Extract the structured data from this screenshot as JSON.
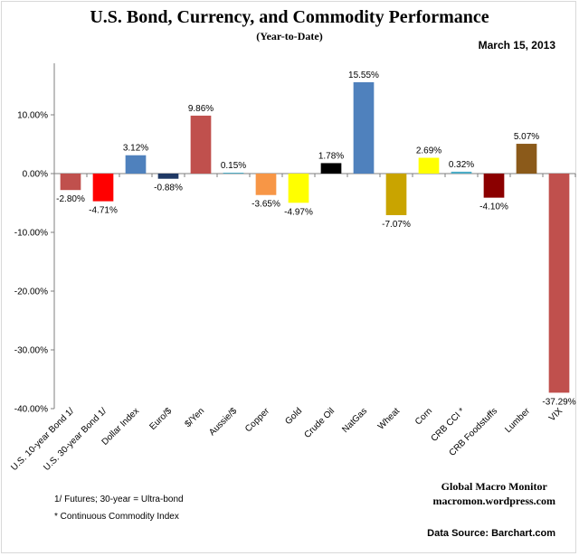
{
  "header": {
    "title": "U.S. Bond, Currency, and Commodity Performance",
    "subtitle": "(Year-to-Date)",
    "date": "March 15, 2013"
  },
  "footer": {
    "monitor_line1": "Global Macro Monitor",
    "monitor_line2": "macromon.wordpress.com",
    "source": "Data Source:  Barchart.com",
    "note1": "1/   Futures; 30-year = Ultra-bond",
    "note2": "* Continuous Commodity Index"
  },
  "chart_data": {
    "type": "bar",
    "title": "U.S. Bond, Currency, and Commodity Performance",
    "subtitle": "(Year-to-Date)",
    "xlabel": "",
    "ylabel": "",
    "ylim": [
      -40,
      20
    ],
    "yticks": [
      10,
      0,
      -10,
      -20,
      -30,
      -40
    ],
    "ytick_labels": [
      "10.00%",
      "0.00%",
      "-10.00%",
      "-20.00%",
      "-30.00%",
      "-40.00%"
    ],
    "categories": [
      "U.S. 10-year Bond 1/",
      "U.S. 30-year Bond 1/",
      "Dollar Index",
      "Euro/$",
      "$/Yen",
      "Aussie/$",
      "Copper",
      "Gold",
      "Crude Oil",
      "NatGas",
      "Wheat",
      "Corn",
      "CRB CCI *",
      "CRB Foodstuffs",
      "Lumber",
      "VIX"
    ],
    "values": [
      -2.8,
      -4.71,
      3.12,
      -0.88,
      9.86,
      0.15,
      -3.65,
      -4.97,
      1.78,
      15.55,
      -7.07,
      2.69,
      0.32,
      -4.1,
      5.07,
      -37.29
    ],
    "data_labels": [
      "-2.80%",
      "-4.71%",
      "3.12%",
      "-0.88%",
      "9.86%",
      "0.15%",
      "-3.65%",
      "-4.97%",
      "1.78%",
      "15.55%",
      "-7.07%",
      "2.69%",
      "0.32%",
      "-4.10%",
      "5.07%",
      "-37.29%"
    ],
    "colors": [
      "#c0504d",
      "#ff0000",
      "#4f81bd",
      "#1f3864",
      "#c0504d",
      "#4bacc6",
      "#f79646",
      "#ffff00",
      "#000000",
      "#4f81bd",
      "#c9a400",
      "#ffff00",
      "#4bacc6",
      "#8b0000",
      "#8b5a1a",
      "#c0504d"
    ],
    "grid": false
  }
}
